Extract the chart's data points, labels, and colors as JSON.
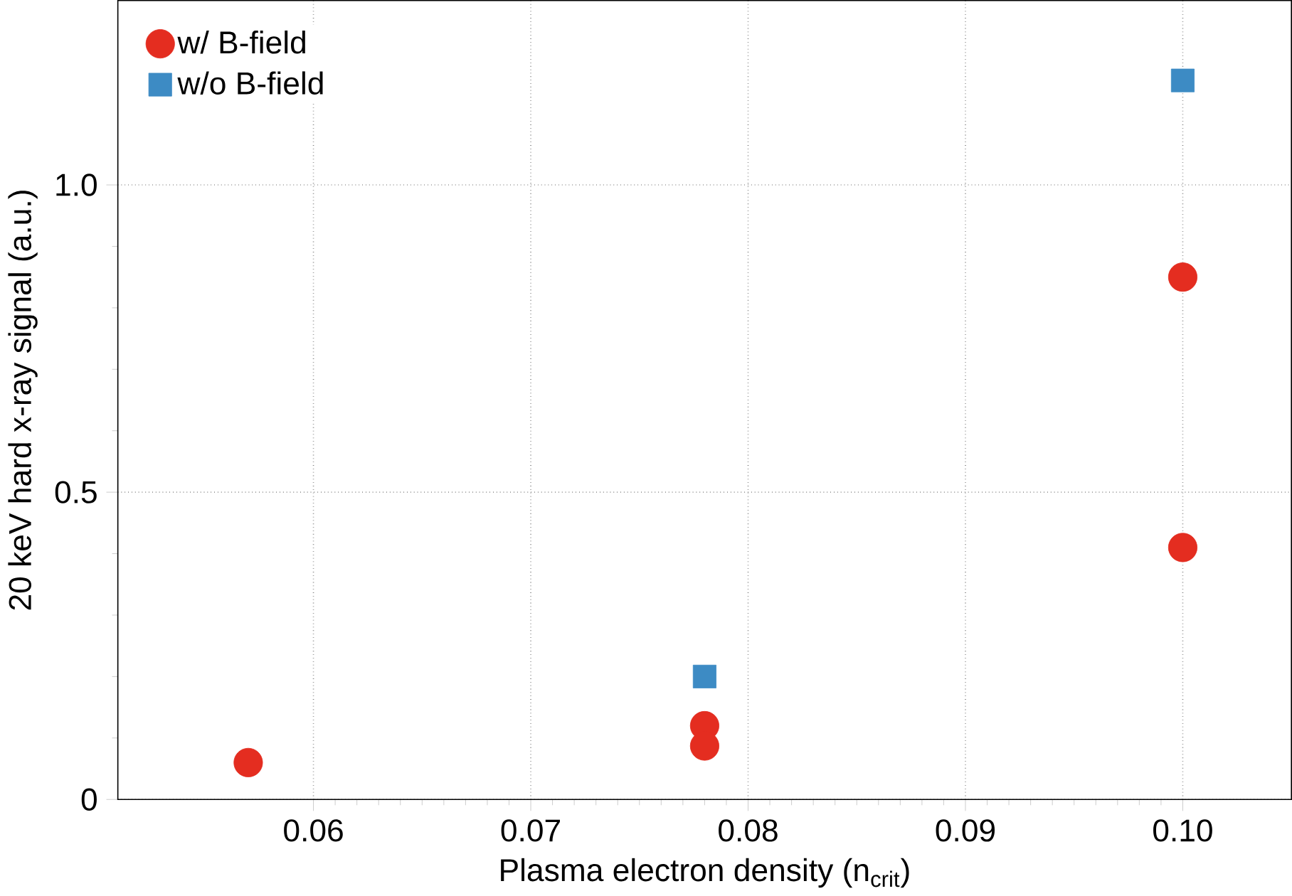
{
  "chart_data": {
    "type": "scatter",
    "xlabel": "Plasma electron density (n$_{crit}$)",
    "ylabel": "20 keV hard x-ray signal (a.u.)",
    "xlim": [
      0.051,
      0.105
    ],
    "ylim": [
      0,
      1.3
    ],
    "xticks": [
      {
        "value": 0.06,
        "label": "0.06"
      },
      {
        "value": 0.07,
        "label": "0.07"
      },
      {
        "value": 0.08,
        "label": "0.08"
      },
      {
        "value": 0.09,
        "label": "0.09"
      },
      {
        "value": 0.1,
        "label": "0.10"
      }
    ],
    "yticks": [
      {
        "value": 0,
        "label": "0"
      },
      {
        "value": 0.5,
        "label": "0.5"
      },
      {
        "value": 1.0,
        "label": "1.0"
      }
    ],
    "grid": true,
    "legend": "top left",
    "series": [
      {
        "name": "w/ B-field",
        "color": "#e42d20",
        "marker": "circle",
        "x": [
          0.057,
          0.078,
          0.078,
          0.1,
          0.1
        ],
        "values": [
          0.06,
          0.12,
          0.087,
          0.85,
          0.41
        ]
      },
      {
        "name": "w/o B-field",
        "color": "#3d8bc4",
        "marker": "square",
        "x": [
          0.078,
          0.1
        ],
        "values": [
          0.2,
          1.17
        ]
      }
    ]
  }
}
